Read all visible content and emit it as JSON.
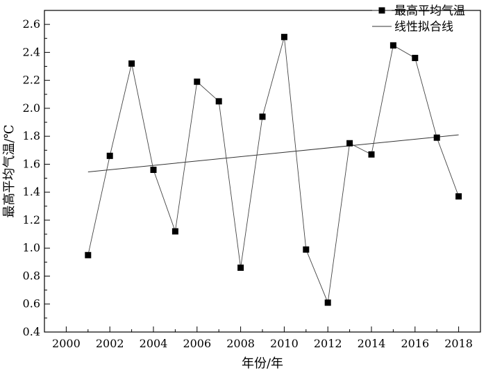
{
  "chart_data": {
    "type": "line",
    "xlabel": "年份/年",
    "ylabel": "最高平均气温/℃",
    "xlim": [
      1999,
      2019
    ],
    "ylim": [
      0.4,
      2.7
    ],
    "xticks": [
      "2000",
      "2002",
      "2004",
      "2006",
      "2008",
      "2010",
      "2012",
      "2014",
      "2016",
      "2018"
    ],
    "yticks": [
      "0.4",
      "0.6",
      "0.8",
      "1.0",
      "1.2",
      "1.4",
      "1.6",
      "1.8",
      "2.0",
      "2.2",
      "2.4",
      "2.6"
    ],
    "grid": false,
    "legend_position": "top-right",
    "series": [
      {
        "name": "最高平均气温",
        "style": "line-with-square-markers",
        "x": [
          2001,
          2002,
          2003,
          2004,
          2005,
          2006,
          2007,
          2008,
          2009,
          2010,
          2011,
          2012,
          2013,
          2014,
          2015,
          2016,
          2017,
          2018
        ],
        "values": [
          0.95,
          1.66,
          2.32,
          1.56,
          1.12,
          2.19,
          2.05,
          0.86,
          1.94,
          2.51,
          0.99,
          0.61,
          1.75,
          1.67,
          2.45,
          2.36,
          1.79,
          1.37
        ]
      },
      {
        "name": "线性拟合线",
        "style": "line",
        "x": [
          2001,
          2018
        ],
        "values": [
          1.545,
          1.81
        ]
      }
    ]
  }
}
